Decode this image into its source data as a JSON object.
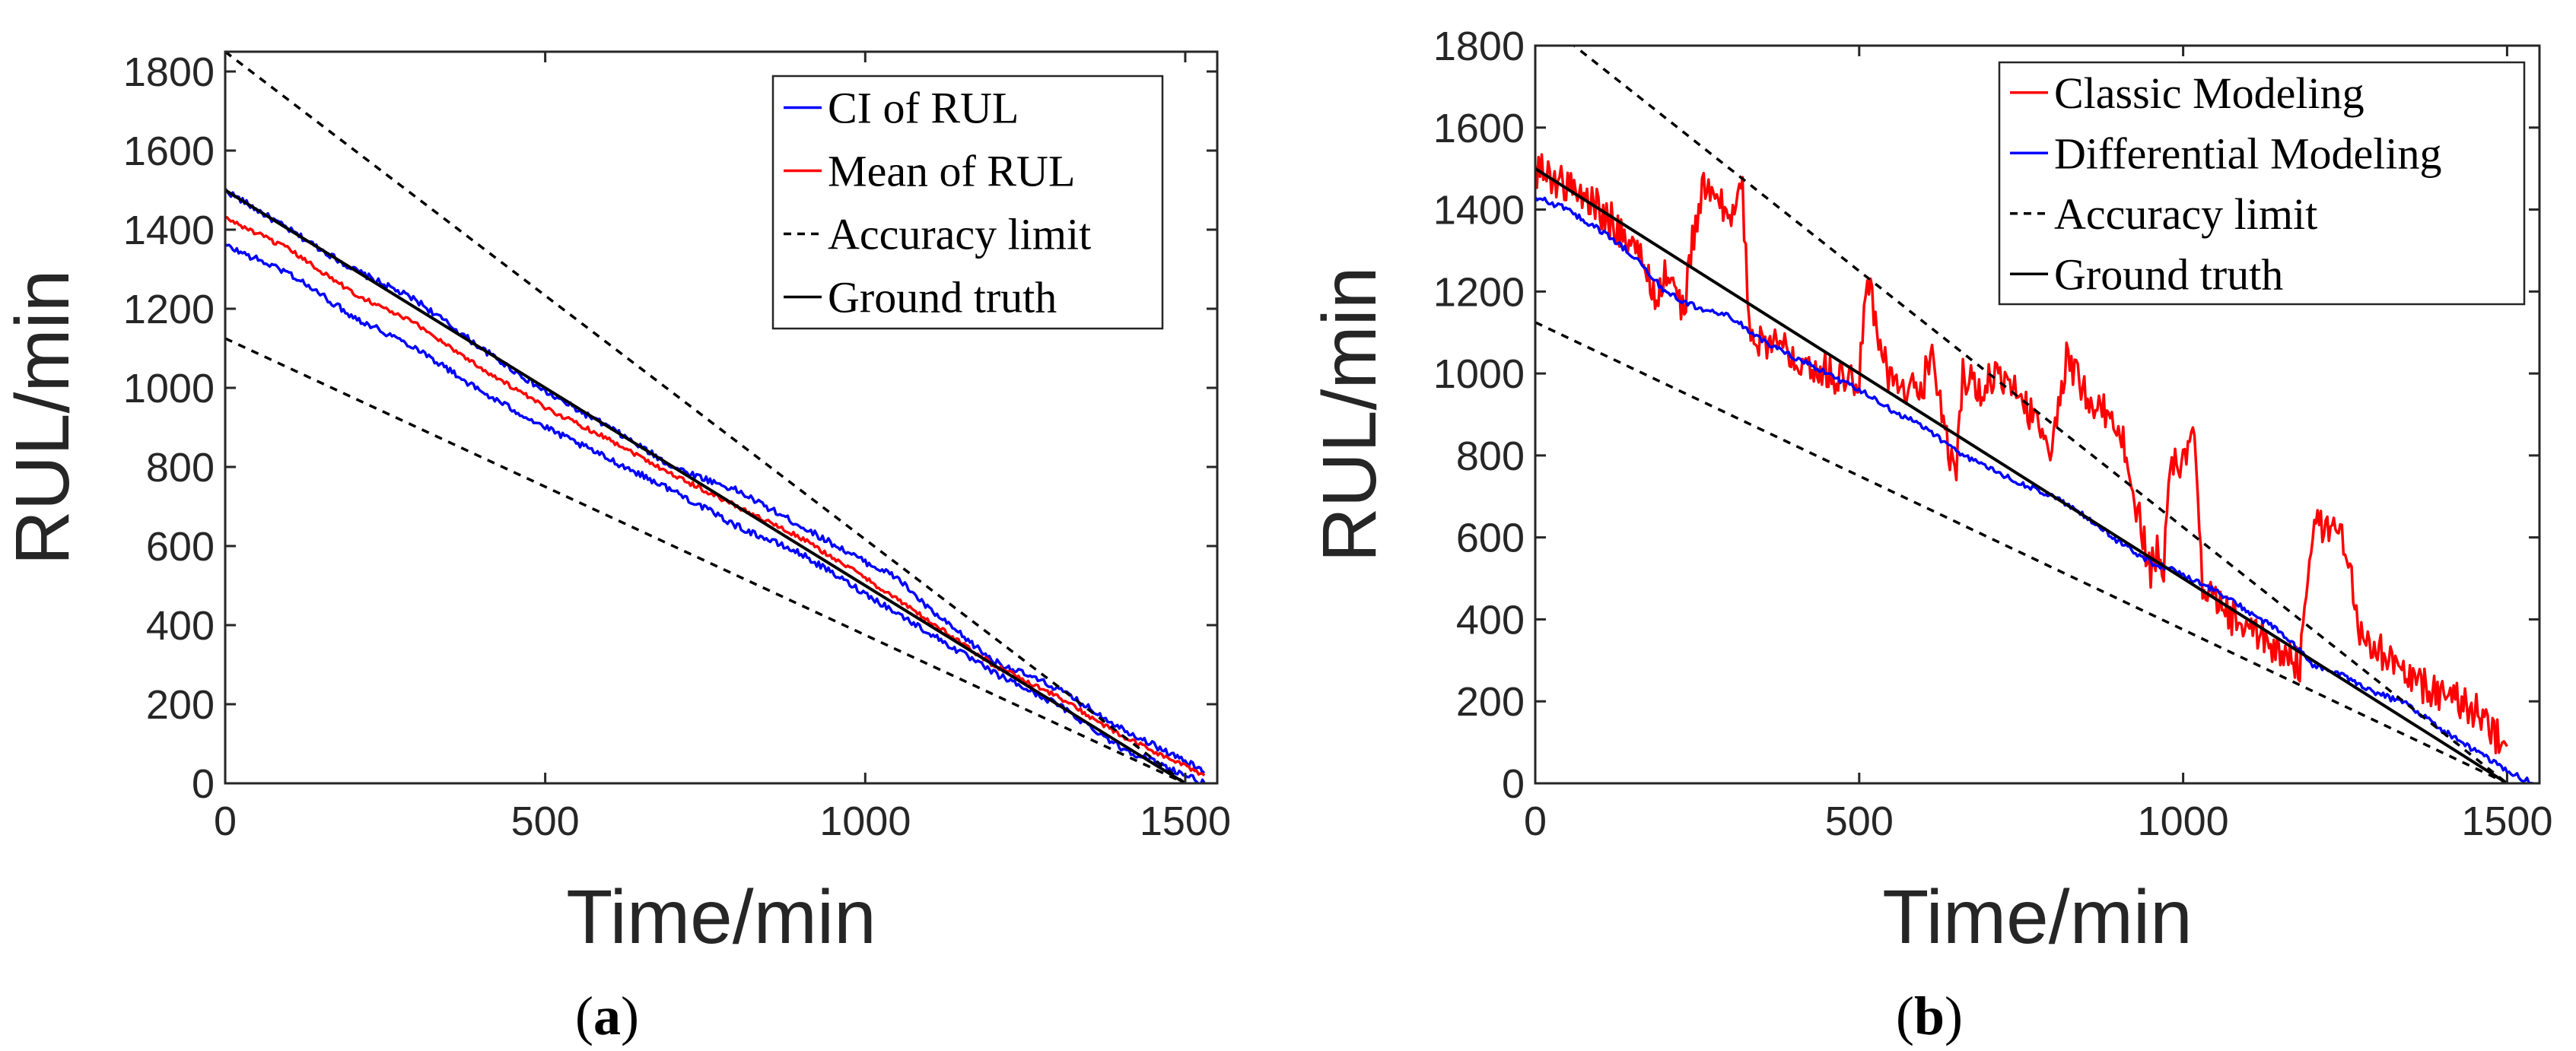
{
  "chart_data": [
    {
      "type": "line",
      "panel_label": "a",
      "xlabel": "Time/min",
      "ylabel": "RUL/min",
      "xlim": [
        0,
        1550
      ],
      "ylim": [
        0,
        1850
      ],
      "xticks": [
        0,
        500,
        1000,
        1500
      ],
      "yticks": [
        0,
        200,
        400,
        600,
        800,
        1000,
        1200,
        1400,
        1600,
        1800
      ],
      "grid": false,
      "legend_position": "top-right",
      "series": [
        {
          "name": "CI of RUL",
          "color": "#0000ff",
          "style": "solid",
          "role": "upper",
          "x": [
            0,
            100,
            200,
            300,
            400,
            500,
            600,
            700,
            800,
            900,
            1000,
            1050,
            1100,
            1200,
            1300,
            1400,
            1530
          ],
          "y": [
            1500,
            1400,
            1300,
            1220,
            1100,
            990,
            900,
            800,
            740,
            650,
            560,
            520,
            440,
            310,
            240,
            140,
            30
          ]
        },
        {
          "name": "CI of RUL",
          "color": "#0000ff",
          "style": "solid",
          "role": "lower",
          "x": [
            0,
            100,
            200,
            300,
            400,
            500,
            600,
            700,
            800,
            900,
            1000,
            1100,
            1200,
            1300,
            1400,
            1530
          ],
          "y": [
            1360,
            1290,
            1180,
            1100,
            990,
            900,
            820,
            740,
            650,
            580,
            480,
            380,
            280,
            200,
            90,
            0
          ]
        },
        {
          "name": "Mean of RUL",
          "color": "#ff0000",
          "style": "solid",
          "x": [
            0,
            100,
            200,
            300,
            400,
            500,
            600,
            700,
            800,
            900,
            1000,
            1100,
            1200,
            1300,
            1400,
            1530
          ],
          "y": [
            1430,
            1350,
            1240,
            1160,
            1050,
            950,
            870,
            780,
            700,
            620,
            520,
            410,
            300,
            220,
            120,
            20
          ]
        },
        {
          "name": "Accuracy limit",
          "color": "#000000",
          "style": "dashed",
          "role": "upper",
          "x": [
            0,
            1500
          ],
          "y": [
            1850,
            0
          ]
        },
        {
          "name": "Accuracy limit",
          "color": "#000000",
          "style": "dashed",
          "role": "lower",
          "x": [
            0,
            1500
          ],
          "y": [
            1125,
            0
          ]
        },
        {
          "name": "Ground truth",
          "color": "#000000",
          "style": "solid",
          "x": [
            0,
            1500
          ],
          "y": [
            1500,
            0
          ]
        }
      ],
      "legend": [
        "CI of RUL",
        "Mean of RUL",
        "Accuracy limit",
        "Ground truth"
      ]
    },
    {
      "type": "line",
      "panel_label": "b",
      "xlabel": "Time/min",
      "ylabel": "RUL/min",
      "xlim": [
        0,
        1550
      ],
      "ylim": [
        0,
        1800
      ],
      "xticks": [
        0,
        500,
        1000,
        1500
      ],
      "yticks": [
        0,
        200,
        400,
        600,
        800,
        1000,
        1200,
        1400,
        1600,
        1800
      ],
      "grid": false,
      "legend_position": "top-right",
      "series": [
        {
          "name": "Classic Modeling",
          "color": "#ff0000",
          "style": "solid",
          "x": [
            0,
            50,
            100,
            150,
            190,
            200,
            230,
            240,
            260,
            300,
            320,
            330,
            400,
            480,
            500,
            510,
            520,
            540,
            560,
            600,
            610,
            640,
            650,
            660,
            690,
            700,
            750,
            800,
            820,
            850,
            900,
            950,
            960,
            970,
            980,
            1000,
            1010,
            1020,
            1030,
            1060,
            1100,
            1150,
            1180,
            1190,
            1200,
            1250,
            1260,
            1270,
            1300,
            1350,
            1400,
            1450,
            1480,
            1500
          ],
          "y": [
            1500,
            1460,
            1400,
            1320,
            1180,
            1250,
            1150,
            1300,
            1460,
            1380,
            1450,
            1100,
            1050,
            980,
            1000,
            1230,
            1180,
            1020,
            950,
            980,
            1050,
            800,
            760,
            1000,
            950,
            1000,
            940,
            820,
            1050,
            950,
            880,
            520,
            560,
            520,
            780,
            780,
            850,
            800,
            480,
            420,
            370,
            330,
            280,
            450,
            640,
            600,
            500,
            380,
            330,
            250,
            220,
            180,
            120,
            90
          ]
        },
        {
          "name": "Differential Modeling",
          "color": "#0000ff",
          "style": "solid",
          "x": [
            0,
            50,
            100,
            150,
            200,
            250,
            300,
            350,
            400,
            450,
            500,
            550,
            600,
            650,
            700,
            750,
            800,
            850,
            900,
            950,
            1000,
            1050,
            1100,
            1150,
            1200,
            1250,
            1300,
            1350,
            1400,
            1450,
            1500,
            1540
          ],
          "y": [
            1430,
            1400,
            1350,
            1290,
            1200,
            1160,
            1140,
            1080,
            1040,
            1000,
            960,
            910,
            870,
            810,
            770,
            730,
            700,
            650,
            590,
            540,
            510,
            470,
            420,
            370,
            290,
            260,
            220,
            190,
            130,
            80,
            30,
            0
          ]
        },
        {
          "name": "Accuracy limit",
          "color": "#000000",
          "style": "dashed",
          "role": "upper",
          "x": [
            0,
            1500
          ],
          "y": [
            1875,
            0
          ]
        },
        {
          "name": "Accuracy limit",
          "color": "#000000",
          "style": "dashed",
          "role": "lower",
          "x": [
            0,
            1500
          ],
          "y": [
            1125,
            0
          ]
        },
        {
          "name": "Ground truth",
          "color": "#000000",
          "style": "solid",
          "x": [
            0,
            1500
          ],
          "y": [
            1500,
            0
          ]
        }
      ],
      "legend": [
        "Classic Modeling",
        "Differential Modeling",
        "Accuracy limit",
        "Ground truth"
      ]
    }
  ]
}
